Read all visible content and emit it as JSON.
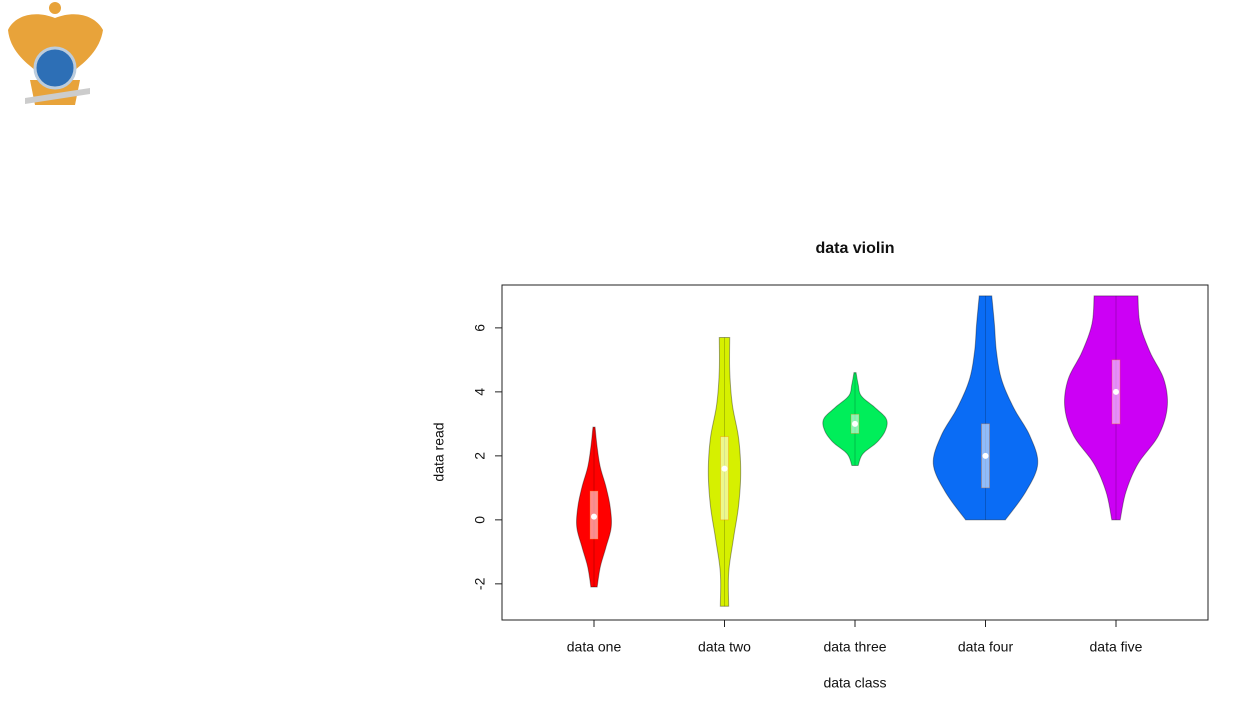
{
  "chart_data": {
    "type": "violin",
    "title": "data violin",
    "xlabel": "data class",
    "ylabel": "data read",
    "categories": [
      "data one",
      "data two",
      "data three",
      "data four",
      "data five"
    ],
    "series": [
      {
        "color": "#ff0000",
        "min": -2.1,
        "q1": -0.6,
        "median": 0.1,
        "q3": 0.9,
        "max": 2.9,
        "density": [
          0.06,
          0.12,
          0.23,
          0.33,
          0.31,
          0.23,
          0.12,
          0.06,
          0.02
        ]
      },
      {
        "color": "#d6f000",
        "min": -2.7,
        "q1": 0,
        "median": 1.6,
        "q3": 2.6,
        "max": 5.7,
        "density": [
          0.08,
          0.08,
          0.17,
          0.27,
          0.31,
          0.27,
          0.15,
          0.1,
          0.1
        ]
      },
      {
        "color": "#00ee5a",
        "min": 1.7,
        "q1": 2.7,
        "median": 3.0,
        "q3": 3.3,
        "max": 4.6,
        "density": [
          0.06,
          0.15,
          0.42,
          0.58,
          0.6,
          0.38,
          0.12,
          0.06,
          0.02
        ]
      },
      {
        "color": "#0a6cf5",
        "min": 0,
        "q1": 1,
        "median": 2,
        "q3": 3,
        "max": 7,
        "density": [
          0.38,
          0.77,
          1,
          0.85,
          0.54,
          0.31,
          0.21,
          0.17,
          0.12
        ]
      },
      {
        "color": "#cc00f5",
        "min": 0,
        "q1": 3,
        "median": 4,
        "q3": 5,
        "max": 7,
        "density": [
          0.08,
          0.19,
          0.42,
          0.81,
          0.98,
          0.92,
          0.65,
          0.46,
          0.42
        ]
      }
    ],
    "ylim": [
      -3.13,
      7.34
    ],
    "yticks": [
      -2,
      0,
      2,
      4,
      6
    ]
  }
}
